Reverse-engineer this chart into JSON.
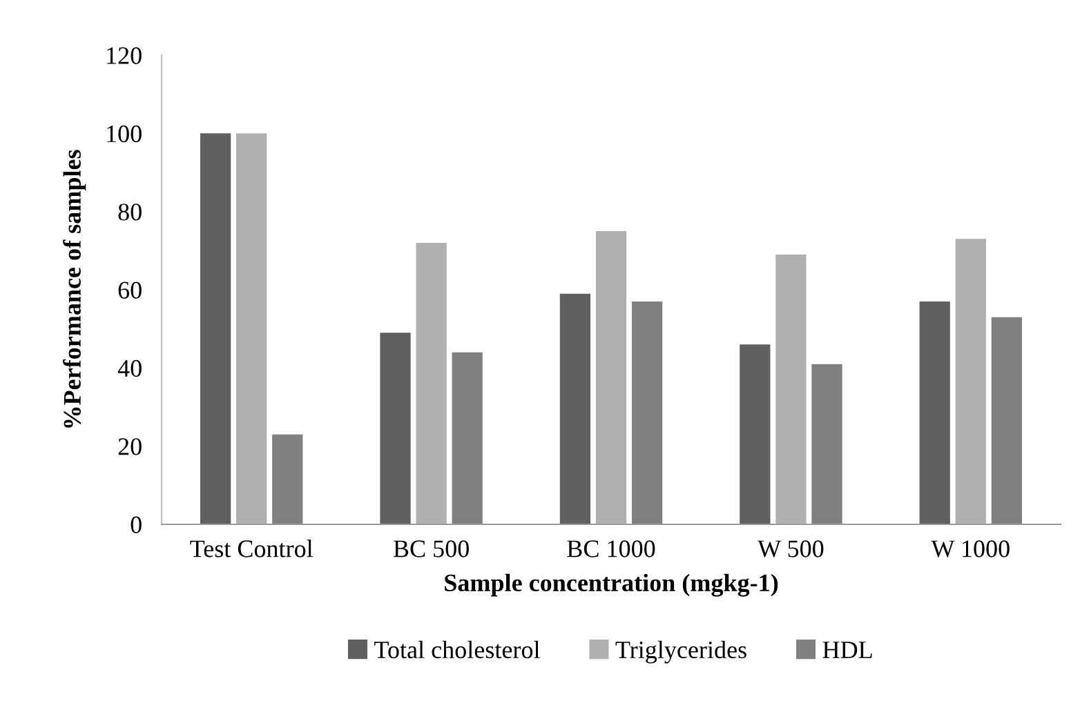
{
  "chart_data": {
    "type": "bar",
    "xlabel": "Sample concentration (mgkg-1)",
    "ylabel": "%Performance of samples",
    "categories": [
      "Test Control",
      "BC 500",
      "BC 1000",
      "W 500",
      "W 1000"
    ],
    "series": [
      {
        "name": "Total cholesterol",
        "color": "#606060",
        "values": [
          100,
          49,
          59,
          46,
          57
        ]
      },
      {
        "name": "Triglycerides",
        "color": "#b0b0b0",
        "values": [
          100,
          72,
          75,
          69,
          73
        ]
      },
      {
        "name": "HDL",
        "color": "#808080",
        "values": [
          23,
          44,
          57,
          41,
          53
        ]
      }
    ],
    "ylim": [
      0,
      120
    ],
    "yticks": [
      0,
      20,
      40,
      60,
      80,
      100,
      120
    ],
    "grid": false,
    "legend": "bottom"
  }
}
